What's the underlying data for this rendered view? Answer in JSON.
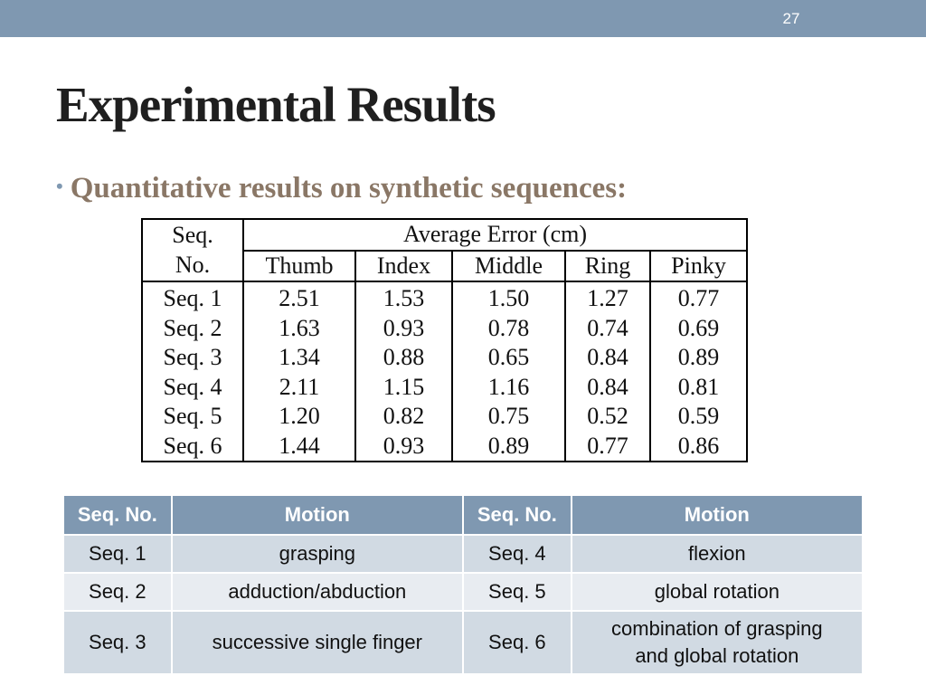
{
  "slide": {
    "page_number": "27",
    "title": "Experimental Results",
    "bullet": "Quantitative results on synthetic sequences:"
  },
  "error_table": {
    "header_seq_line1": "Seq.",
    "header_seq_line2": "No.",
    "header_group": "Average Error (cm)",
    "columns": [
      "Thumb",
      "Index",
      "Middle",
      "Ring",
      "Pinky"
    ],
    "rows": [
      {
        "seq": "Seq. 1",
        "values": [
          "2.51",
          "1.53",
          "1.50",
          "1.27",
          "0.77"
        ]
      },
      {
        "seq": "Seq. 2",
        "values": [
          "1.63",
          "0.93",
          "0.78",
          "0.74",
          "0.69"
        ]
      },
      {
        "seq": "Seq. 3",
        "values": [
          "1.34",
          "0.88",
          "0.65",
          "0.84",
          "0.89"
        ]
      },
      {
        "seq": "Seq. 4",
        "values": [
          "2.11",
          "1.15",
          "1.16",
          "0.84",
          "0.81"
        ]
      },
      {
        "seq": "Seq. 5",
        "values": [
          "1.20",
          "0.82",
          "0.75",
          "0.52",
          "0.59"
        ]
      },
      {
        "seq": "Seq. 6",
        "values": [
          "1.44",
          "0.93",
          "0.89",
          "0.77",
          "0.86"
        ]
      }
    ]
  },
  "motion_table": {
    "headers": [
      "Seq. No.",
      "Motion",
      "Seq. No.",
      "Motion"
    ],
    "rows": [
      [
        "Seq. 1",
        "grasping",
        "Seq. 4",
        "flexion"
      ],
      [
        "Seq. 2",
        "adduction/abduction",
        "Seq. 5",
        "global rotation"
      ],
      [
        "Seq. 3",
        "successive single finger",
        "Seq. 6",
        "combination of grasping and global rotation"
      ]
    ]
  },
  "colors": {
    "accent": "#7f98b1",
    "bullet_text": "#8a7766",
    "row_dark": "#d1dae3",
    "row_light": "#e8ecf1"
  }
}
